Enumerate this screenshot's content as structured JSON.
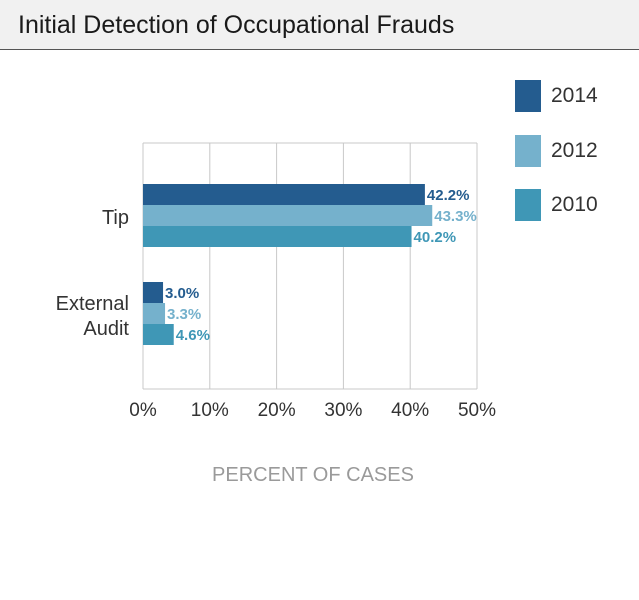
{
  "header": {
    "title": "Initial Detection of Occupational Frauds"
  },
  "chart_data": {
    "type": "bar",
    "orientation": "horizontal",
    "categories": [
      "Tip",
      "External Audit"
    ],
    "series": [
      {
        "name": "2014",
        "values": [
          42.2,
          3.0
        ],
        "labels": [
          "42.2%",
          "3.0%"
        ],
        "color": "#245c8f"
      },
      {
        "name": "2012",
        "values": [
          43.3,
          3.3
        ],
        "labels": [
          "43.3%",
          "3.3%"
        ],
        "color": "#75b1cc"
      },
      {
        "name": "2010",
        "values": [
          40.2,
          4.6
        ],
        "labels": [
          "40.2%",
          "4.6%"
        ],
        "color": "#3f97b6"
      }
    ],
    "xlabel": "PERCENT OF CASES",
    "ylabel": "",
    "xlim": [
      0,
      50
    ],
    "xticks": [
      0,
      10,
      20,
      30,
      40,
      50
    ],
    "xtick_labels": [
      "0%",
      "10%",
      "20%",
      "30%",
      "40%",
      "50%"
    ],
    "grid": true,
    "legend_position": "top-right"
  },
  "colors": {
    "grid": "#c8c8c8",
    "axis_label": "#9a9a9a",
    "tick_text": "#333333",
    "header_bg": "#f1f1f1"
  }
}
